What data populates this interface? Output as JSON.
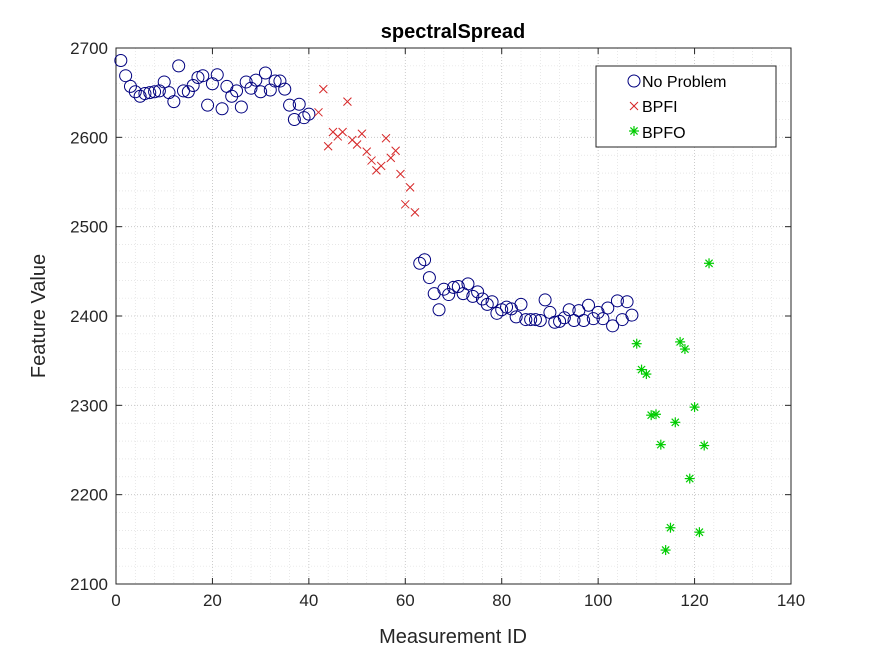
{
  "chart_data": {
    "type": "scatter",
    "title": "spectralSpread",
    "xlabel": "Measurement ID",
    "ylabel": "Feature Value",
    "xlim": [
      0,
      140
    ],
    "ylim": [
      2100,
      2700
    ],
    "xticks": [
      0,
      20,
      40,
      60,
      80,
      100,
      120,
      140
    ],
    "yticks": [
      2100,
      2200,
      2300,
      2400,
      2500,
      2600,
      2700
    ],
    "grid": "major and minor, dotted",
    "legend_position": "top-right",
    "series": [
      {
        "name": "No Problem",
        "marker": "circle",
        "color": "#00007F",
        "x": [
          1,
          2,
          3,
          4,
          5,
          6,
          7,
          8,
          9,
          10,
          11,
          12,
          13,
          14,
          15,
          16,
          17,
          18,
          19,
          20,
          21,
          22,
          23,
          24,
          25,
          26,
          27,
          28,
          29,
          30,
          31,
          32,
          33,
          34,
          35,
          36,
          37,
          38,
          39,
          40,
          63,
          64,
          65,
          66,
          67,
          68,
          69,
          70,
          71,
          72,
          73,
          74,
          75,
          76,
          77,
          78,
          79,
          80,
          81,
          82,
          83,
          84,
          85,
          86,
          87,
          88,
          89,
          90,
          91,
          92,
          93,
          94,
          95,
          96,
          97,
          98,
          99,
          100,
          101,
          102,
          103,
          104,
          105,
          106,
          107
        ],
        "y": [
          2686,
          2669,
          2657,
          2651,
          2646,
          2649,
          2650,
          2651,
          2652,
          2662,
          2650,
          2640,
          2680,
          2652,
          2651,
          2658,
          2667,
          2669,
          2636,
          2660,
          2670,
          2632,
          2657,
          2646,
          2652,
          2634,
          2662,
          2655,
          2664,
          2651,
          2672,
          2653,
          2663,
          2663,
          2654,
          2636,
          2620,
          2637,
          2622,
          2626,
          2459,
          2463,
          2443,
          2425,
          2407,
          2430,
          2424,
          2432,
          2433,
          2425,
          2436,
          2422,
          2427,
          2419,
          2413,
          2416,
          2403,
          2407,
          2410,
          2408,
          2399,
          2413,
          2396,
          2396,
          2396,
          2395,
          2418,
          2404,
          2393,
          2394,
          2398,
          2407,
          2395,
          2406,
          2395,
          2412,
          2397,
          2404,
          2397,
          2409,
          2389,
          2417,
          2396,
          2416,
          2401
        ]
      },
      {
        "name": "BPFI",
        "marker": "x",
        "color": "#D62728",
        "x": [
          42,
          43,
          44,
          45,
          46,
          47,
          48,
          49,
          50,
          51,
          52,
          53,
          54,
          55,
          56,
          57,
          58,
          59,
          60,
          61,
          62
        ],
        "y": [
          2628,
          2654,
          2590,
          2606,
          2601,
          2606,
          2640,
          2597,
          2592,
          2604,
          2584,
          2574,
          2563,
          2568,
          2599,
          2577,
          2585,
          2559,
          2525,
          2544,
          2516
        ]
      },
      {
        "name": "BPFO",
        "marker": "asterisk",
        "color": "#00CC00",
        "x": [
          108,
          109,
          110,
          111,
          112,
          113,
          114,
          115,
          116,
          117,
          118,
          119,
          120,
          121,
          122,
          123
        ],
        "y": [
          2369,
          2340,
          2335,
          2289,
          2290,
          2256,
          2138,
          2163,
          2281,
          2371,
          2363,
          2218,
          2298,
          2158,
          2255,
          2459
        ]
      }
    ]
  }
}
